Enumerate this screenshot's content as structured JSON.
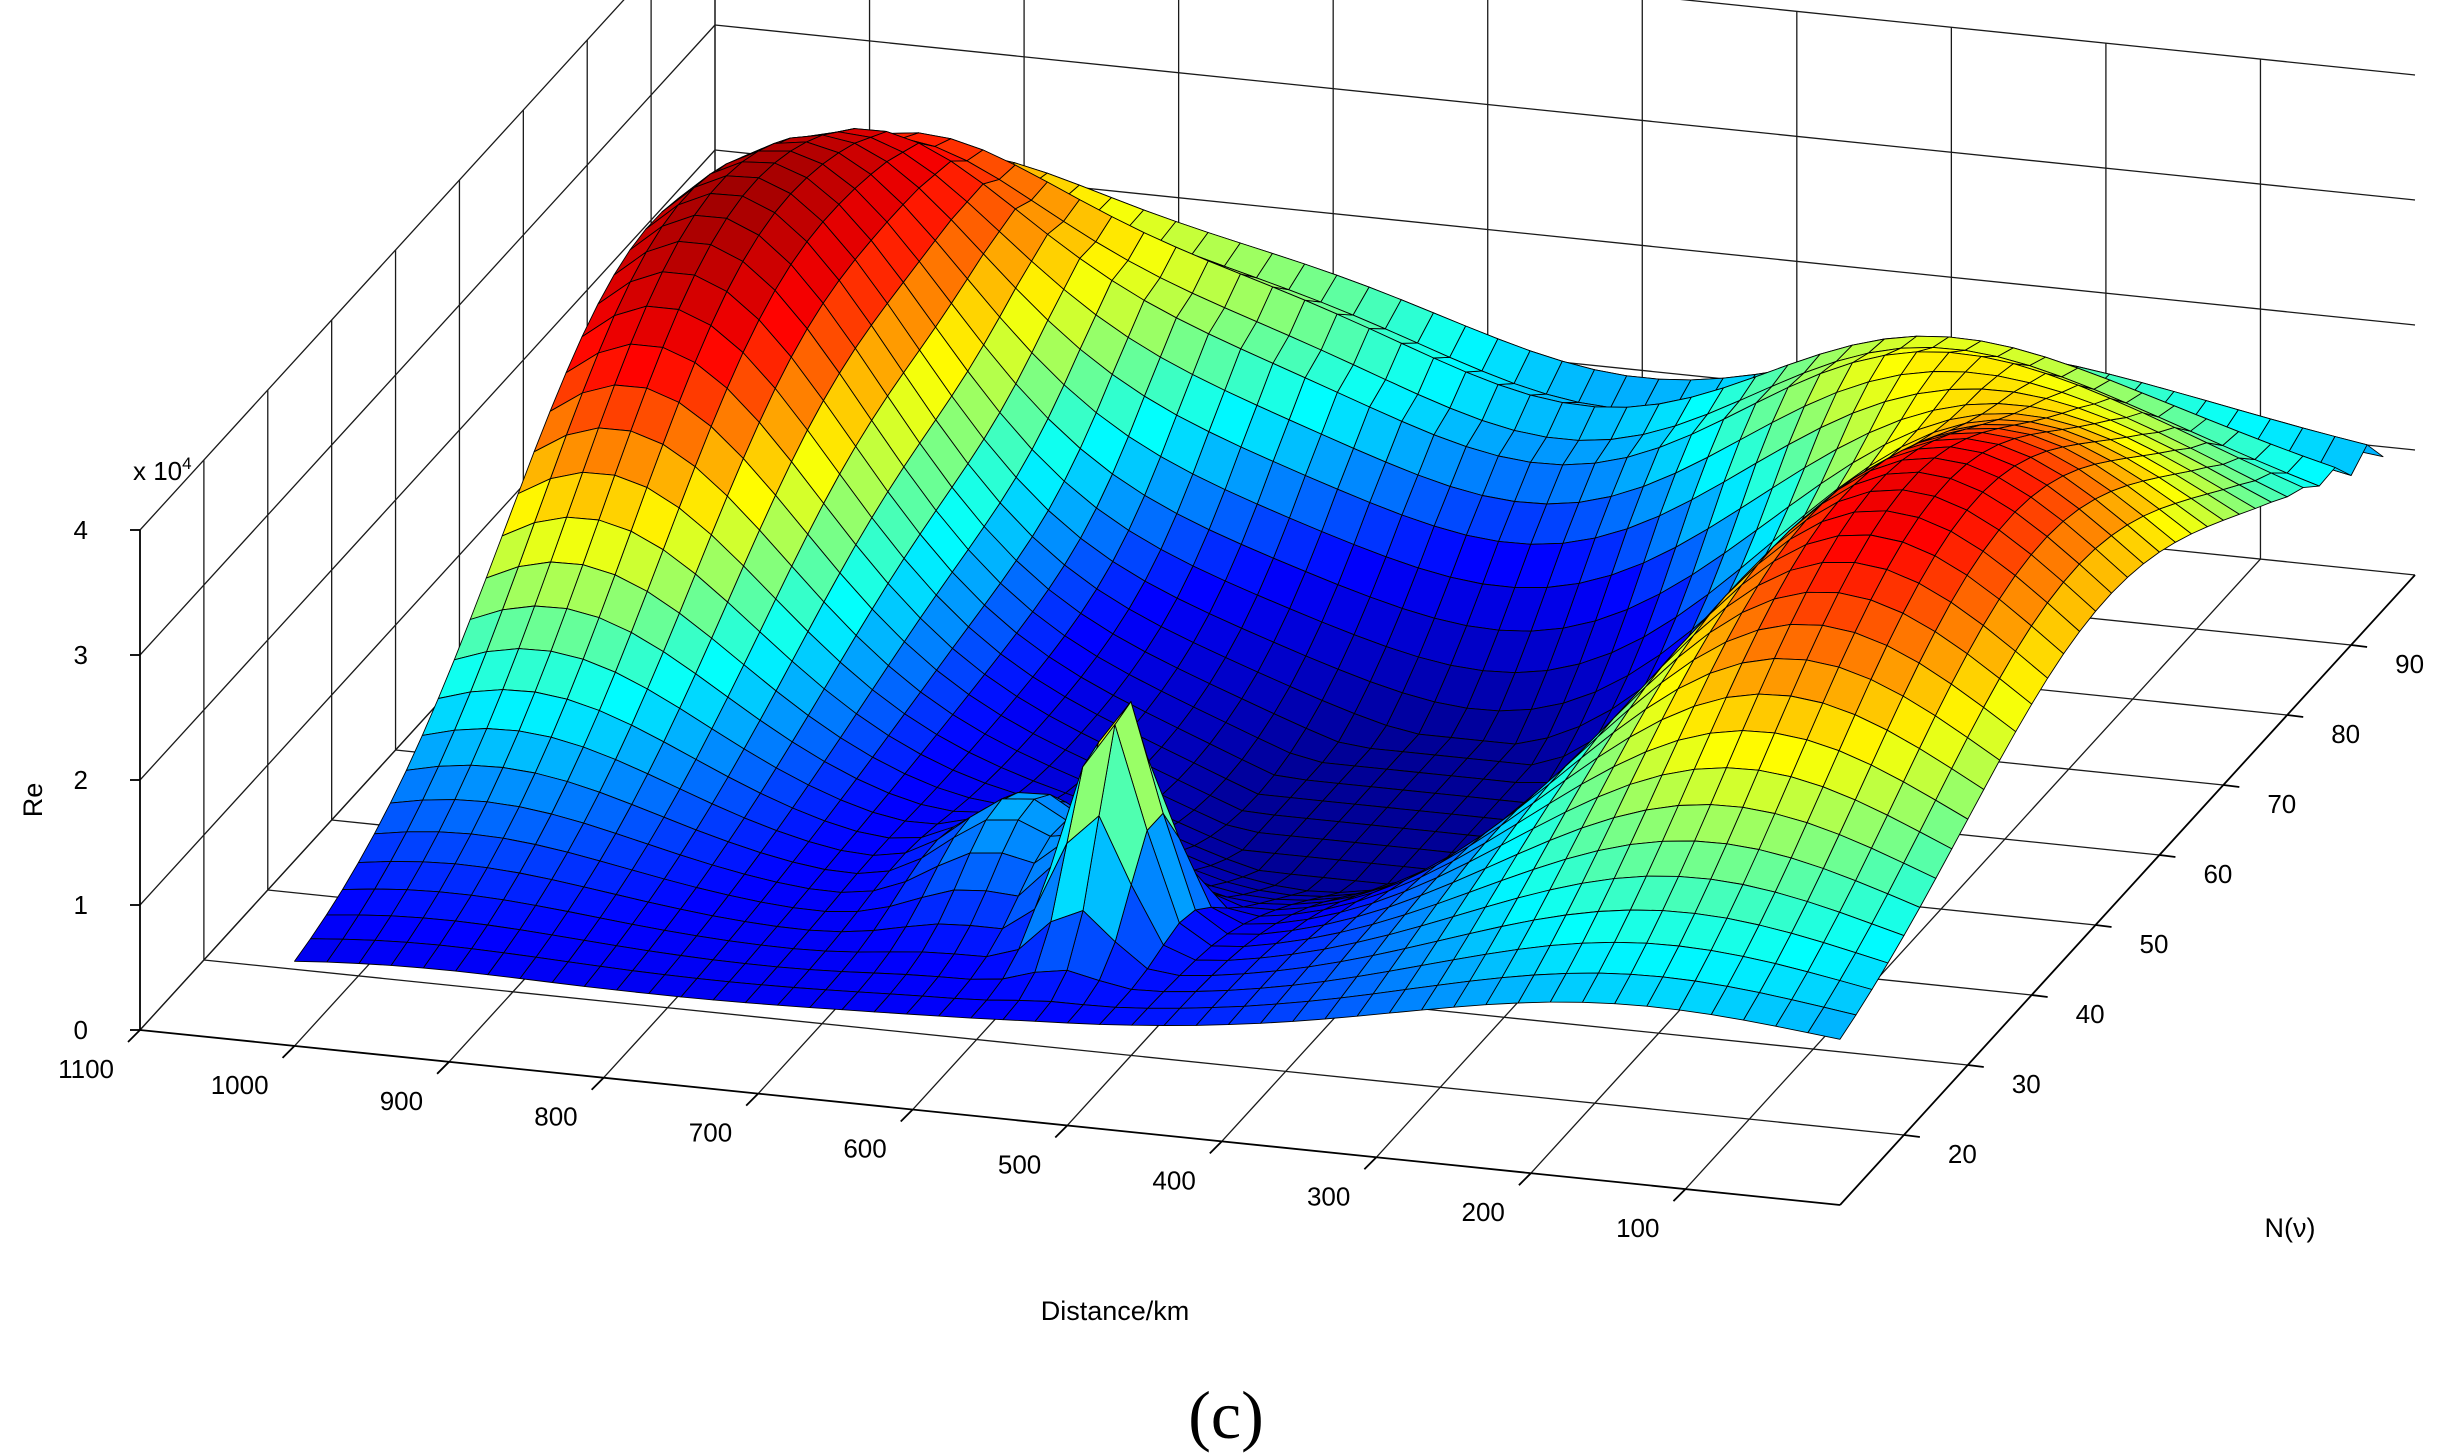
{
  "chart_data": {
    "type": "surface",
    "zlabel": "Re",
    "z_exponent_label": "x 10",
    "z_exponent_power": "4",
    "xlabel": "Distance/km",
    "ylabel": "N(ν)",
    "caption": "(c)",
    "xlim": [
      0,
      1100
    ],
    "ylim": [
      10,
      100
    ],
    "zlim": [
      0,
      4
    ],
    "x_ticks": [
      "1100",
      "1000",
      "900",
      "800",
      "700",
      "600",
      "500",
      "400",
      "300",
      "200",
      "100"
    ],
    "y_ticks": [
      "20",
      "30",
      "40",
      "50",
      "60",
      "70",
      "80",
      "90"
    ],
    "z_ticks": [
      "0",
      "1",
      "2",
      "3",
      "4"
    ],
    "grid": true,
    "colormap": "jet",
    "colormap_stops": [
      "#00008f",
      "#0000ff",
      "#00ffff",
      "#ffff00",
      "#ff0000",
      "#800000"
    ],
    "surface": {
      "x_range": [
        0,
        1000
      ],
      "y_range": [
        10,
        95
      ],
      "z_unit": "x 10^4",
      "peaks": [
        {
          "distance": 150,
          "n": 50,
          "re": 3.1
        },
        {
          "distance": 250,
          "n": 82,
          "re": 1.35
        },
        {
          "distance": 500,
          "n": 30,
          "re": 0.9
        },
        {
          "distance": 520,
          "n": 24,
          "re": 2.4
        },
        {
          "distance": 950,
          "n": 65,
          "re": 4.0
        }
      ],
      "trough": {
        "distance": 400,
        "n": 55,
        "re": 0.15
      }
    }
  }
}
